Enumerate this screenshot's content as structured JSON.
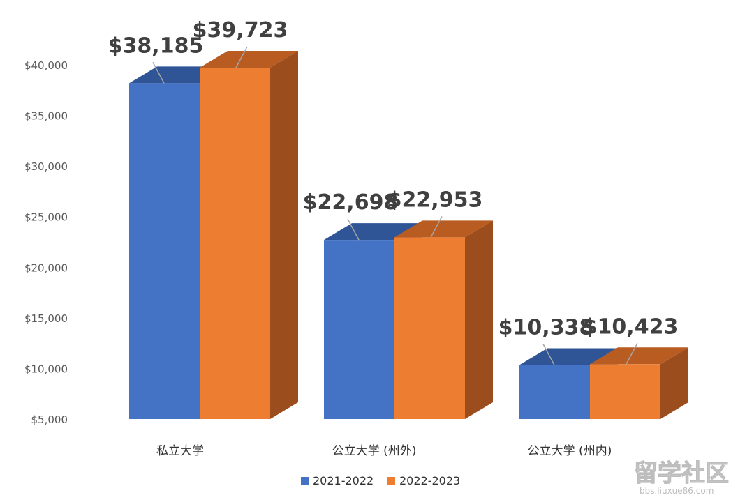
{
  "chart_data": {
    "type": "bar",
    "style": "3d-clustered-column",
    "categories": [
      "私立大学",
      "公立大学 (州外)",
      "公立大学 (州内)"
    ],
    "series": [
      {
        "name": "2021-2022",
        "values": [
          38185,
          22698,
          10338
        ],
        "labels": [
          "$38,185",
          "$22,698",
          "$10,338"
        ]
      },
      {
        "name": "2022-2023",
        "values": [
          39723,
          22953,
          10423
        ],
        "labels": [
          "$39,723",
          "$22,953",
          "$10,423"
        ]
      }
    ],
    "y_ticks": [
      "$5,000",
      "$10,000",
      "$15,000",
      "$20,000",
      "$25,000",
      "$30,000",
      "$35,000",
      "$40,000"
    ],
    "y_tick_values": [
      5000,
      10000,
      15000,
      20000,
      25000,
      30000,
      35000,
      40000
    ],
    "ylim": [
      5000,
      40000
    ],
    "grid": false,
    "legend": "bottom-center",
    "title": "",
    "xlabel": "",
    "ylabel": ""
  },
  "colors": {
    "series": [
      {
        "front": "#4472c4",
        "top": "#2f5597",
        "side": "#2e4f8f"
      },
      {
        "front": "#ed7d31",
        "top": "#b85c22",
        "side": "#9c4d1d"
      }
    ],
    "tick_text": "#595959",
    "label_text": "#404040",
    "leader_line": "#a6a6a6"
  },
  "watermark": {
    "text": "留学社区",
    "sub": "bbs.liuxue86.com"
  }
}
